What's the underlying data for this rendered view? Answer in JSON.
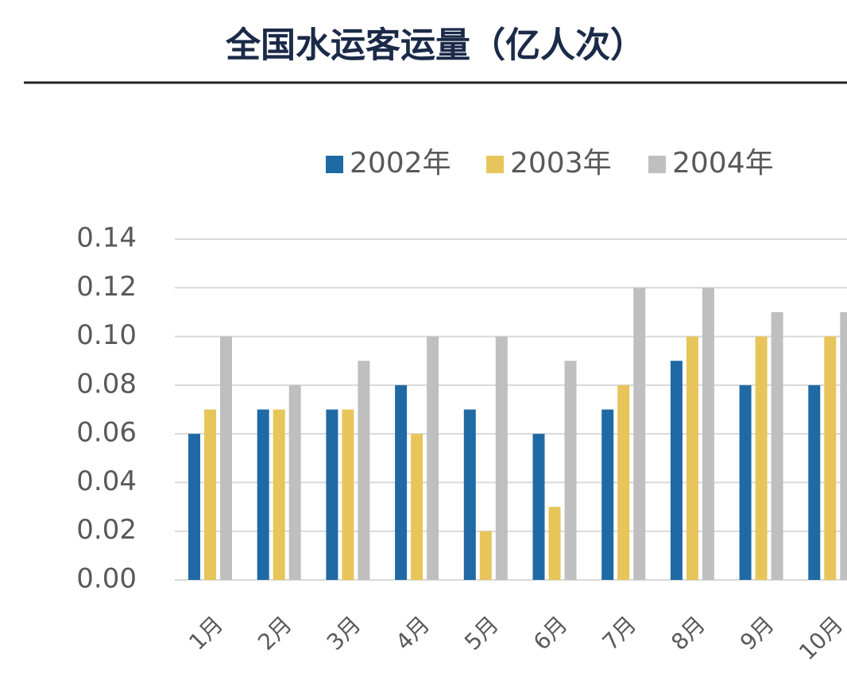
{
  "chart_data": {
    "type": "bar",
    "title": "全国水运客运量（亿人次）",
    "categories": [
      "1月",
      "2月",
      "3月",
      "4月",
      "5月",
      "6月",
      "7月",
      "8月",
      "9月",
      "10月"
    ],
    "series": [
      {
        "name": "2002年",
        "color": "#1f6aa5",
        "values": [
          0.06,
          0.07,
          0.07,
          0.08,
          0.07,
          0.06,
          0.07,
          0.09,
          0.08,
          0.08
        ]
      },
      {
        "name": "2003年",
        "color": "#e8c55a",
        "values": [
          0.07,
          0.07,
          0.07,
          0.06,
          0.02,
          0.03,
          0.08,
          0.1,
          0.1,
          0.1
        ]
      },
      {
        "name": "2004年",
        "color": "#bfbfbf",
        "values": [
          0.1,
          0.08,
          0.09,
          0.1,
          0.1,
          0.09,
          0.12,
          0.12,
          0.11,
          0.11
        ]
      }
    ],
    "ylim": [
      0,
      0.14
    ],
    "yticks": [
      {
        "value": 0,
        "label": "0.00"
      },
      0.02,
      0.04,
      0.06,
      0.08,
      {
        "value": 0.1,
        "label": "0.10"
      },
      0.12,
      0.14
    ],
    "grid": true,
    "legend": "top"
  }
}
